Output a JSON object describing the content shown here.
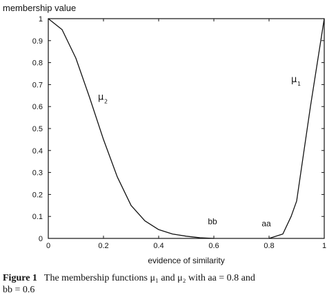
{
  "chart_data": {
    "type": "line",
    "ylabel": "membership value",
    "xlabel": "evidence of similarity",
    "xlim": [
      0,
      1
    ],
    "ylim": [
      0,
      1
    ],
    "x_ticks": [
      "0",
      "0.2",
      "0.4",
      "0.6",
      "0.8",
      "1"
    ],
    "x_tick_values": [
      0,
      0.2,
      0.4,
      0.6,
      0.8,
      1
    ],
    "y_ticks": [
      "0",
      "0.1",
      "0.2",
      "0.3",
      "0.4",
      "0.5",
      "0.6",
      "0.7",
      "0.8",
      "0.9",
      "1"
    ],
    "y_tick_values": [
      0,
      0.1,
      0.2,
      0.3,
      0.4,
      0.5,
      0.6,
      0.7,
      0.8,
      0.9,
      1
    ],
    "grid": false,
    "series": [
      {
        "x": [
          0,
          0.05,
          0.1,
          0.15,
          0.2,
          0.25,
          0.3,
          0.35,
          0.4,
          0.45,
          0.5,
          0.55,
          0.6
        ],
        "values": [
          1,
          0.95,
          0.82,
          0.64,
          0.45,
          0.28,
          0.15,
          0.08,
          0.04,
          0.02,
          0.01,
          0.003,
          0
        ]
      },
      {
        "x": [
          0.8,
          0.85,
          0.88,
          0.9,
          0.95,
          1
        ],
        "values": [
          0,
          0.02,
          0.1,
          0.17,
          0.6,
          1
        ]
      }
    ],
    "annotations": [
      {
        "text": "μ",
        "sub": "2",
        "x": 0.18,
        "y": 0.63
      },
      {
        "text": "μ",
        "sub": "1",
        "x": 0.88,
        "y": 0.71
      },
      {
        "text": "bb",
        "x": 0.595,
        "y": 0.065
      },
      {
        "text": "aa",
        "x": 0.79,
        "y": 0.055
      }
    ]
  },
  "caption": {
    "label": "Figure 1",
    "line1": "The membership functions μ₁ and μ₂ with aa = 0.8 and",
    "line2": "bb = 0.6"
  }
}
